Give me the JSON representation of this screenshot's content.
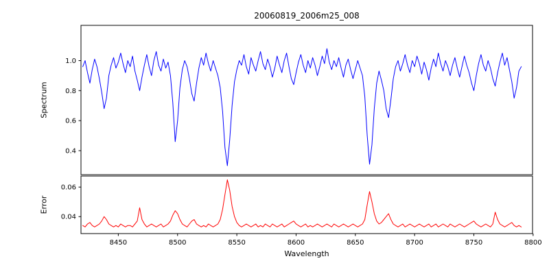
{
  "figure": {
    "title": "20060819_2006m25_008",
    "xlabel": "Wavelength",
    "background": "#ffffff",
    "frame_color": "#000000"
  },
  "chart_data": [
    {
      "type": "line",
      "name": "spectrum",
      "title": "20060819_2006m25_008",
      "ylabel": "Spectrum",
      "color": "#0000ff",
      "legend": "none",
      "grid": false,
      "xlim": [
        8418.5,
        8799.5
      ],
      "ylim": [
        0.24,
        1.235
      ],
      "ytick_values": [
        0.4,
        0.6,
        0.8,
        1.0
      ],
      "ytick_labels": [
        "0.4",
        "0.6",
        "0.8",
        "1.0"
      ],
      "xtick_values": [],
      "xtick_labels": [],
      "x_start": 8420,
      "x_step": 2,
      "values": [
        0.96,
        1.0,
        0.92,
        0.85,
        0.94,
        1.01,
        0.96,
        0.88,
        0.79,
        0.68,
        0.75,
        0.9,
        0.97,
        1.02,
        0.95,
        0.99,
        1.05,
        0.98,
        0.92,
        1.0,
        0.96,
        1.03,
        0.93,
        0.87,
        0.8,
        0.89,
        0.97,
        1.04,
        0.96,
        0.9,
        1.0,
        1.06,
        0.97,
        0.93,
        1.01,
        0.95,
        0.99,
        0.9,
        0.72,
        0.46,
        0.6,
        0.82,
        0.94,
        1.0,
        0.96,
        0.88,
        0.78,
        0.73,
        0.85,
        0.95,
        1.02,
        0.97,
        1.05,
        0.98,
        0.93,
        1.0,
        0.95,
        0.9,
        0.82,
        0.66,
        0.42,
        0.3,
        0.47,
        0.7,
        0.86,
        0.94,
        1.0,
        0.97,
        1.04,
        0.96,
        0.91,
        1.02,
        0.97,
        0.93,
        1.0,
        1.06,
        0.98,
        0.94,
        1.01,
        0.96,
        0.89,
        0.95,
        1.03,
        0.97,
        0.92,
        1.0,
        1.05,
        0.96,
        0.88,
        0.84,
        0.92,
        0.99,
        1.04,
        0.97,
        0.92,
        1.0,
        0.95,
        1.02,
        0.97,
        0.9,
        0.96,
        1.03,
        0.98,
        1.08,
        0.99,
        0.94,
        1.0,
        0.96,
        1.02,
        0.95,
        0.89,
        0.97,
        1.01,
        0.94,
        0.88,
        0.94,
        1.0,
        0.95,
        0.9,
        0.76,
        0.5,
        0.31,
        0.44,
        0.68,
        0.85,
        0.93,
        0.87,
        0.8,
        0.68,
        0.62,
        0.74,
        0.88,
        0.96,
        1.0,
        0.93,
        0.98,
        1.04,
        0.97,
        0.92,
        1.0,
        0.96,
        1.03,
        0.98,
        0.91,
        0.99,
        0.94,
        0.87,
        0.95,
        1.01,
        0.96,
        1.05,
        0.98,
        0.93,
        1.0,
        0.96,
        0.9,
        0.97,
        1.02,
        0.95,
        0.89,
        0.96,
        1.03,
        0.97,
        0.92,
        0.85,
        0.8,
        0.9,
        0.98,
        1.04,
        0.97,
        0.93,
        1.0,
        0.95,
        0.88,
        0.83,
        0.92,
        0.99,
        1.05,
        0.97,
        1.02,
        0.94,
        0.86,
        0.75,
        0.82,
        0.93,
        0.96
      ]
    },
    {
      "type": "line",
      "name": "error",
      "ylabel": "Error",
      "xlabel": "Wavelength",
      "color": "#ff0000",
      "legend": "none",
      "grid": false,
      "xlim": [
        8418.5,
        8799.5
      ],
      "ylim": [
        0.0285,
        0.0675
      ],
      "ytick_values": [
        0.04,
        0.06
      ],
      "ytick_labels": [
        "0.04",
        "0.06"
      ],
      "xtick_values": [
        8450,
        8500,
        8550,
        8600,
        8650,
        8700,
        8750,
        8800
      ],
      "xtick_labels": [
        "8450",
        "8500",
        "8550",
        "8600",
        "8650",
        "8700",
        "8750",
        "8800"
      ],
      "x_start": 8420,
      "x_step": 2,
      "values": [
        0.034,
        0.033,
        0.035,
        0.036,
        0.034,
        0.033,
        0.034,
        0.035,
        0.037,
        0.04,
        0.038,
        0.035,
        0.034,
        0.033,
        0.034,
        0.033,
        0.035,
        0.034,
        0.033,
        0.034,
        0.034,
        0.033,
        0.035,
        0.037,
        0.046,
        0.038,
        0.035,
        0.033,
        0.034,
        0.035,
        0.034,
        0.033,
        0.034,
        0.035,
        0.033,
        0.034,
        0.035,
        0.037,
        0.041,
        0.044,
        0.042,
        0.038,
        0.035,
        0.034,
        0.033,
        0.035,
        0.037,
        0.038,
        0.035,
        0.034,
        0.033,
        0.034,
        0.033,
        0.035,
        0.034,
        0.033,
        0.034,
        0.035,
        0.038,
        0.045,
        0.055,
        0.065,
        0.058,
        0.047,
        0.04,
        0.036,
        0.034,
        0.033,
        0.034,
        0.035,
        0.034,
        0.033,
        0.034,
        0.035,
        0.033,
        0.034,
        0.033,
        0.035,
        0.034,
        0.033,
        0.035,
        0.034,
        0.033,
        0.034,
        0.035,
        0.033,
        0.034,
        0.035,
        0.036,
        0.037,
        0.035,
        0.034,
        0.033,
        0.034,
        0.035,
        0.033,
        0.034,
        0.033,
        0.034,
        0.035,
        0.034,
        0.033,
        0.034,
        0.035,
        0.034,
        0.033,
        0.035,
        0.034,
        0.033,
        0.034,
        0.035,
        0.034,
        0.033,
        0.034,
        0.035,
        0.034,
        0.033,
        0.034,
        0.035,
        0.038,
        0.048,
        0.057,
        0.05,
        0.042,
        0.037,
        0.035,
        0.036,
        0.038,
        0.04,
        0.042,
        0.038,
        0.035,
        0.034,
        0.033,
        0.034,
        0.035,
        0.033,
        0.034,
        0.035,
        0.034,
        0.033,
        0.034,
        0.035,
        0.034,
        0.033,
        0.034,
        0.035,
        0.033,
        0.034,
        0.035,
        0.033,
        0.034,
        0.035,
        0.034,
        0.033,
        0.035,
        0.034,
        0.033,
        0.034,
        0.035,
        0.034,
        0.033,
        0.034,
        0.035,
        0.036,
        0.037,
        0.035,
        0.034,
        0.033,
        0.034,
        0.035,
        0.034,
        0.033,
        0.035,
        0.043,
        0.038,
        0.035,
        0.034,
        0.033,
        0.034,
        0.035,
        0.036,
        0.034,
        0.033,
        0.034,
        0.033
      ]
    }
  ]
}
